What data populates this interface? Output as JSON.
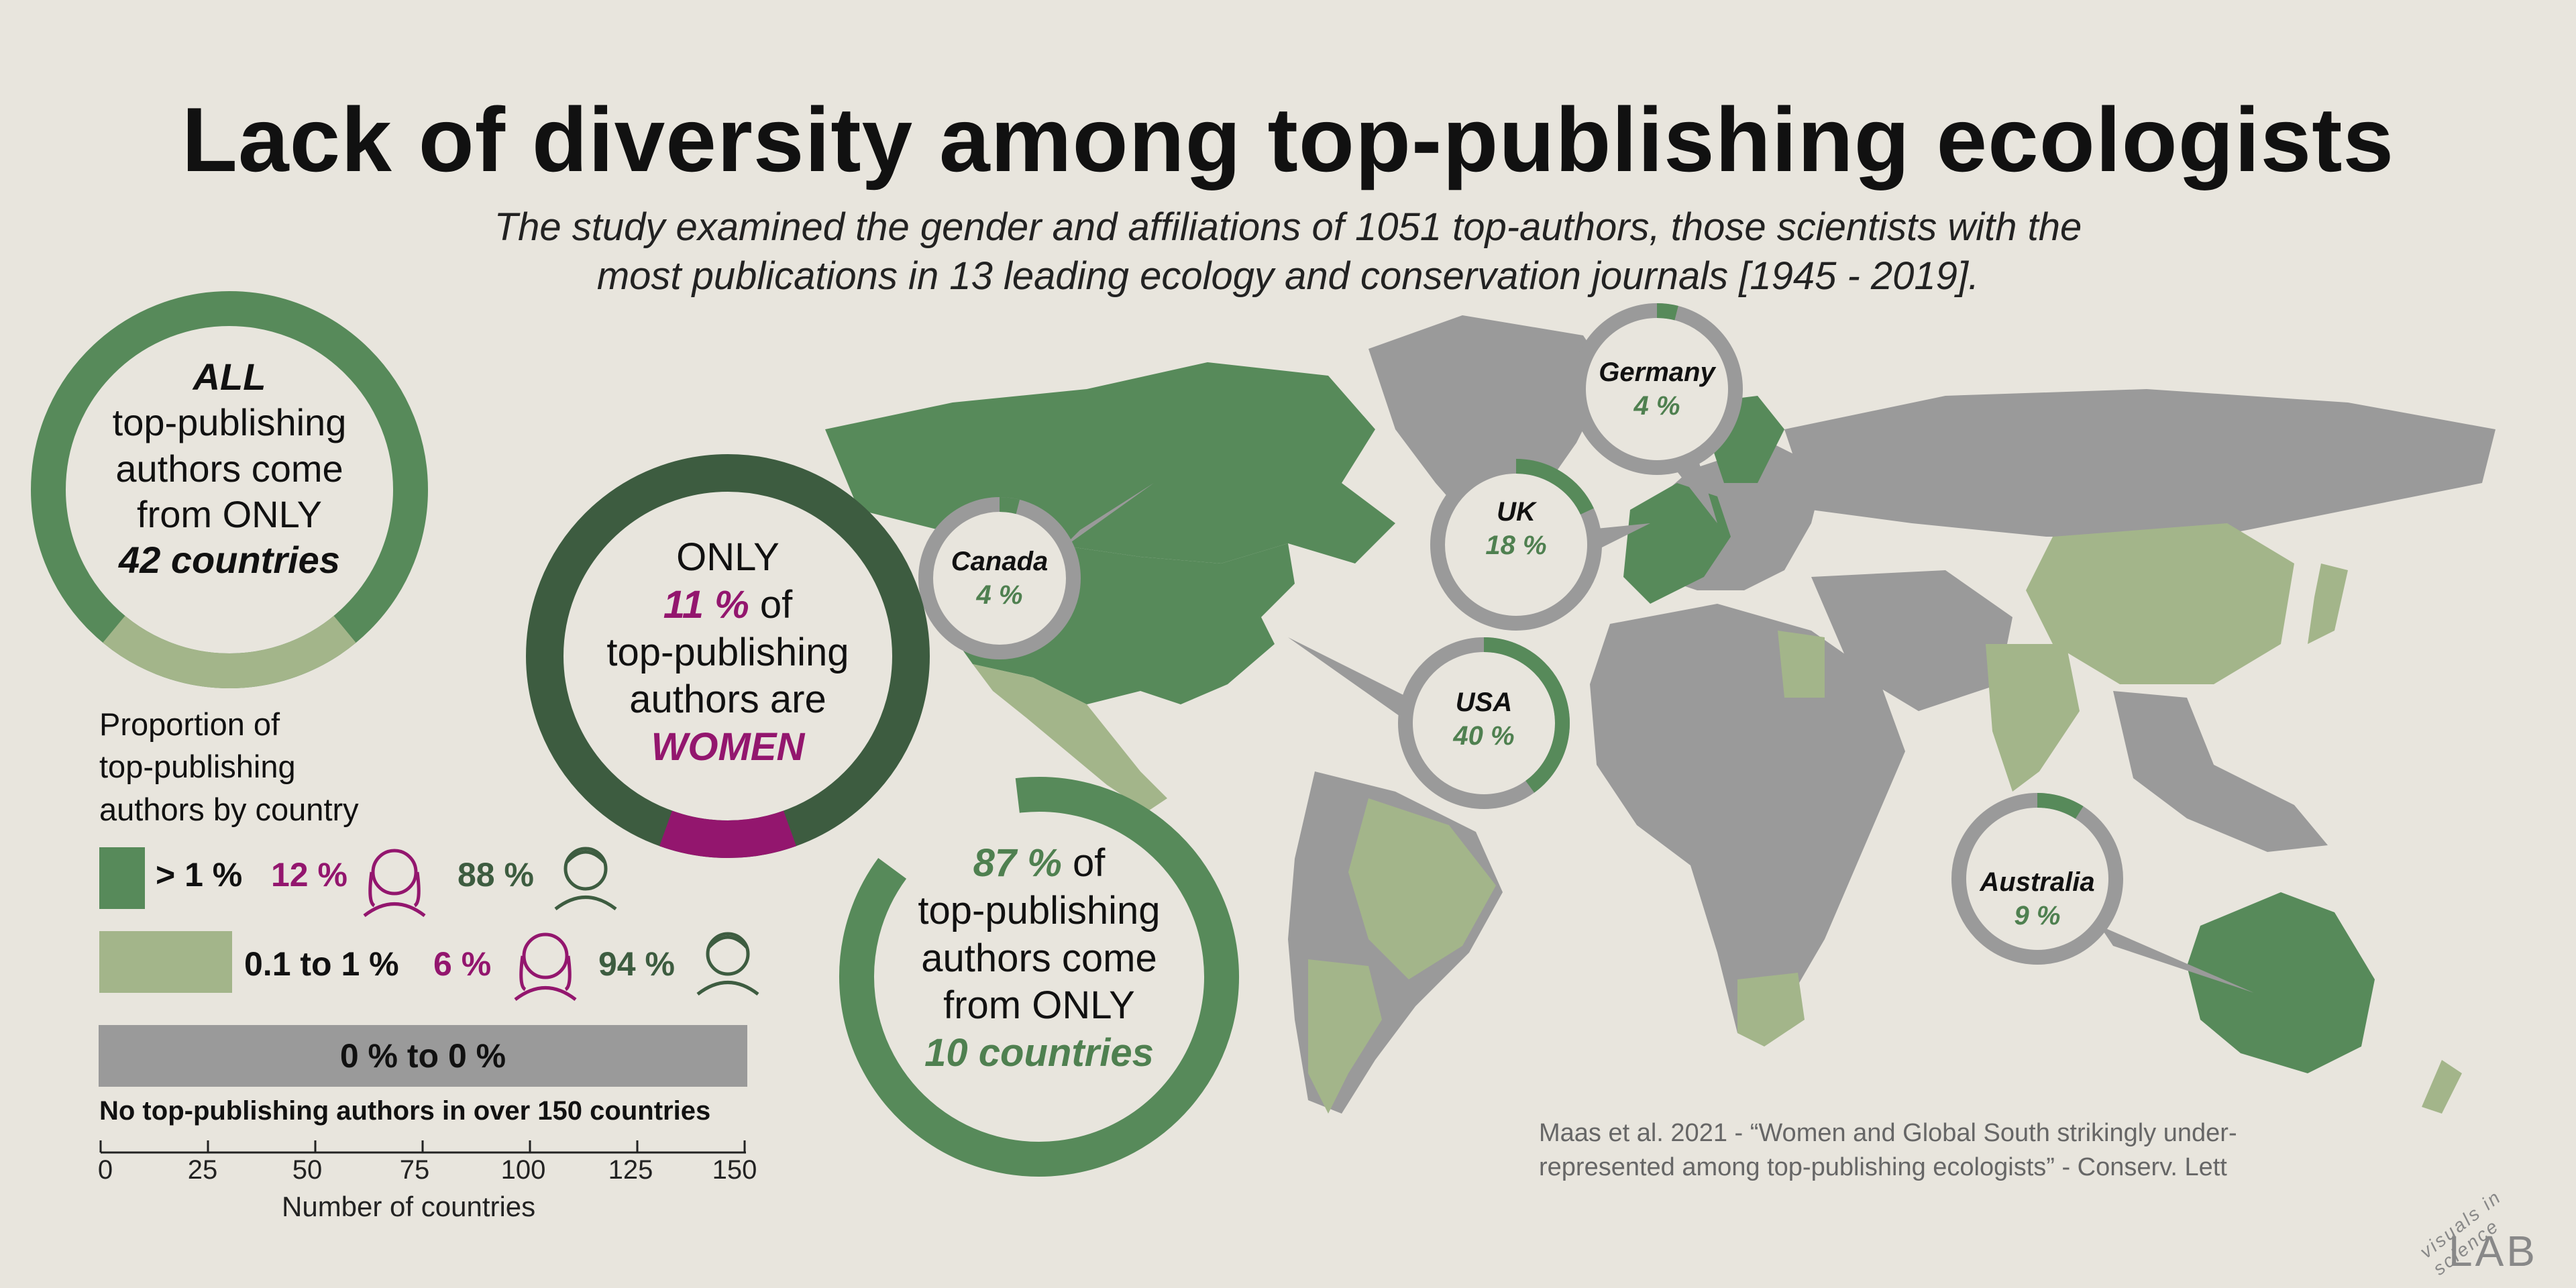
{
  "title": "Lack of diversity among top-publishing ecologists",
  "subtitle_line1": "The study examined the gender and affiliations of 1051 top-authors, those scientists with the",
  "subtitle_line2": "most publications in 13 leading ecology and conservation journals [1945 - 2019].",
  "ring_all": {
    "line1": "ALL",
    "line2": "top-publishing",
    "line3": "authors come",
    "line4": "from ONLY",
    "line5": "42 countries"
  },
  "ring_women": {
    "line1": "ONLY",
    "pct": "11 %",
    "of": "of",
    "line3": "top-publishing",
    "line4": "authors are",
    "line5": "WOMEN",
    "women_fraction": 0.11
  },
  "ring_87": {
    "pct": "87 %",
    "of": "of",
    "line2": "top-publishing",
    "line3": "authors come",
    "line4": "from ONLY",
    "line5": "10 countries",
    "fraction": 0.87
  },
  "legend": {
    "title_line1": "Proportion of",
    "title_line2": "top-publishing",
    "title_line3": "authors by country",
    "row1": {
      "range": "> 1 %",
      "women": "12 %",
      "men": "88 %"
    },
    "row2": {
      "range": "0.1 to 1 %",
      "women": "6 %",
      "men": "94 %"
    },
    "row3": {
      "range": "0 % to 0 %"
    },
    "caption": "No top-publishing authors in over 150 countries",
    "axis_ticks": [
      "0",
      "25",
      "50",
      "75",
      "100",
      "125",
      "150"
    ],
    "axis_title": "Number of countries"
  },
  "callouts": [
    {
      "country": "Canada",
      "pct": "4 %",
      "fraction": 0.04
    },
    {
      "country": "Germany",
      "pct": "4 %",
      "fraction": 0.04
    },
    {
      "country": "UK",
      "pct": "18 %",
      "fraction": 0.18
    },
    {
      "country": "USA",
      "pct": "40 %",
      "fraction": 0.4
    },
    {
      "country": "Australia",
      "pct": "9 %",
      "fraction": 0.09
    }
  ],
  "citation_line1": "Maas et al. 2021 - “Women and Global South strikingly under-",
  "citation_line2": "represented among top-publishing ecologists” - Conserv. Lett",
  "logo_small": "visuals in science",
  "logo_big": "LAB",
  "colors": {
    "dark_green": "#3d5c40",
    "green": "#578a5a",
    "light_green": "#a3b58a",
    "grey": "#9a9a9a",
    "magenta": "#93166e",
    "background": "#e8e5dd"
  }
}
